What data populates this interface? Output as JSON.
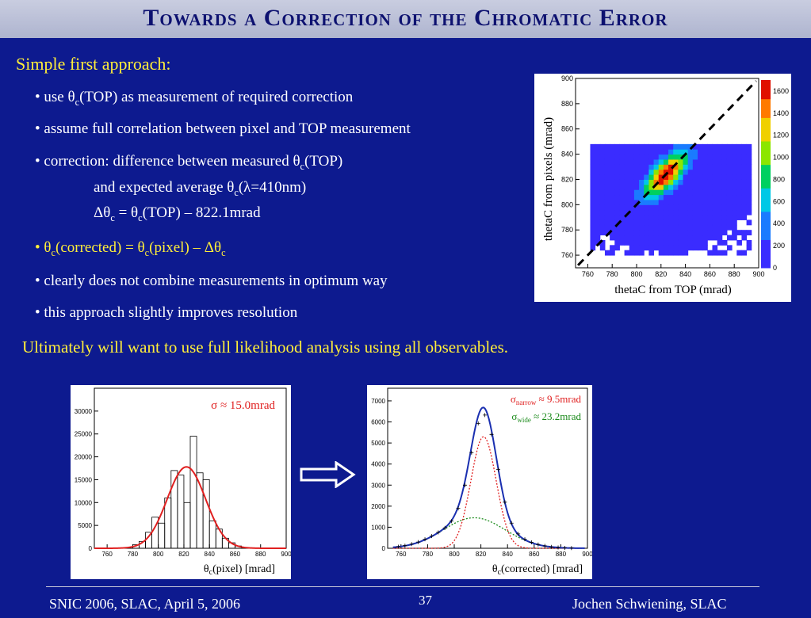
{
  "slide": {
    "title": "Towards a Correction of the Chromatic Error",
    "heading": "Simple first approach:",
    "bullets": {
      "b1_pre": "• use θ",
      "b1_sub": "c",
      "b1_post": "(TOP) as measurement of required correction",
      "b2": "• assume full correlation between pixel and TOP measurement",
      "b3_pre": "• correction: difference between measured θ",
      "b3_sub": "c",
      "b3_post": "(TOP)",
      "b3_l2_pre": "and expected average θ",
      "b3_l2_sub": "c",
      "b3_l2_post": "(λ=410nm)",
      "b3_l3_a": "Δθ",
      "b3_l3_sub1": "c",
      "b3_l3_b": " = θ",
      "b3_l3_sub2": "c",
      "b3_l3_c": "(TOP) – 822.1mrad",
      "b4_a": "• θ",
      "b4_sub1": "c",
      "b4_b": "(corrected) = θ",
      "b4_sub2": "c",
      "b4_c": "(pixel) – Δθ",
      "b4_sub3": "c",
      "b5": "• clearly does not combine measurements in optimum way",
      "b6": "• this approach slightly improves resolution"
    },
    "conclusion": "Ultimately will want to use full likelihood analysis using all observables.",
    "footer": {
      "left": "SNIC 2006, SLAC, April 5, 2006",
      "page": "37",
      "right": "Jochen Schwiening, SLAC"
    },
    "colors": {
      "background": "#0d1a8f",
      "yellow": "#ffee3a",
      "title": "#0d1170"
    }
  },
  "chart_data": [
    {
      "type": "heatmap",
      "xlabel": "thetaC from TOP (mrad)",
      "ylabel": "thetaC from pixels (mrad)",
      "xlim": [
        750,
        900
      ],
      "ylim": [
        750,
        900
      ],
      "x_ticks": [
        "760",
        "780",
        "800",
        "820",
        "840",
        "860",
        "880",
        "900"
      ],
      "y_ticks": [
        "760",
        "780",
        "800",
        "820",
        "840",
        "860",
        "880",
        "900"
      ],
      "z_ticks": [
        "0",
        "200",
        "400",
        "600",
        "800",
        "1000",
        "1200",
        "1400",
        "1600"
      ],
      "zlim": [
        0,
        1700
      ],
      "peak": {
        "x": 822,
        "y": 822
      },
      "diagonal": "dashed black line y = x"
    },
    {
      "type": "bar",
      "xlabel_pre": "θ",
      "xlabel_sub": "c",
      "xlabel_post": "(pixel) [mrad]",
      "annotation": "σ ≈ 15.0mrad",
      "xlim": [
        750,
        900
      ],
      "ylim": [
        0,
        35000
      ],
      "x_ticks": [
        "760",
        "780",
        "800",
        "820",
        "840",
        "860",
        "880",
        "900"
      ],
      "y_ticks": [
        "0",
        "5000",
        "10000",
        "15000",
        "20000",
        "25000",
        "30000"
      ],
      "bins": [
        {
          "x0": 780,
          "x1": 785,
          "v": 800
        },
        {
          "x0": 785,
          "x1": 790,
          "v": 1500
        },
        {
          "x0": 790,
          "x1": 795,
          "v": 3500
        },
        {
          "x0": 795,
          "x1": 800,
          "v": 6800
        },
        {
          "x0": 800,
          "x1": 805,
          "v": 5500
        },
        {
          "x0": 805,
          "x1": 810,
          "v": 11000
        },
        {
          "x0": 810,
          "x1": 815,
          "v": 17000
        },
        {
          "x0": 815,
          "x1": 820,
          "v": 16000
        },
        {
          "x0": 820,
          "x1": 825,
          "v": 10000
        },
        {
          "x0": 825,
          "x1": 830,
          "v": 24500
        },
        {
          "x0": 830,
          "x1": 835,
          "v": 16500
        },
        {
          "x0": 835,
          "x1": 840,
          "v": 15000
        },
        {
          "x0": 840,
          "x1": 845,
          "v": 6000
        },
        {
          "x0": 845,
          "x1": 850,
          "v": 4200
        },
        {
          "x0": 850,
          "x1": 855,
          "v": 2200
        },
        {
          "x0": 855,
          "x1": 860,
          "v": 1200
        },
        {
          "x0": 860,
          "x1": 865,
          "v": 500
        }
      ],
      "fit": {
        "mean": 822,
        "sigma": 15.0,
        "amplitude": 17800,
        "color": "#e02020"
      }
    },
    {
      "type": "line",
      "xlabel_pre": "θ",
      "xlabel_sub": "c",
      "xlabel_post": "(corrected) [mrad]",
      "legend": [
        {
          "sym": "σ",
          "sub": "narrow",
          "text": " ≈ 9.5mrad",
          "color": "#e02020"
        },
        {
          "sym": "σ",
          "sub": "wide",
          "text": " ≈ 23.2mrad",
          "color": "#1a8a1a"
        }
      ],
      "xlim": [
        750,
        900
      ],
      "ylim": [
        0,
        7600
      ],
      "x_ticks": [
        "760",
        "780",
        "800",
        "820",
        "840",
        "860",
        "880",
        "900"
      ],
      "y_ticks": [
        "0",
        "1000",
        "2000",
        "3000",
        "4000",
        "5000",
        "6000",
        "7000"
      ],
      "series": [
        {
          "role": "total",
          "color": "#1a2fb0",
          "mean": 822,
          "components": true
        },
        {
          "role": "narrow",
          "color": "#e02020",
          "mean": 822,
          "sigma": 9.5,
          "amplitude": 5300
        },
        {
          "role": "wide",
          "color": "#1a8a1a",
          "mean": 815,
          "sigma": 23.2,
          "amplitude": 1450
        }
      ]
    }
  ]
}
